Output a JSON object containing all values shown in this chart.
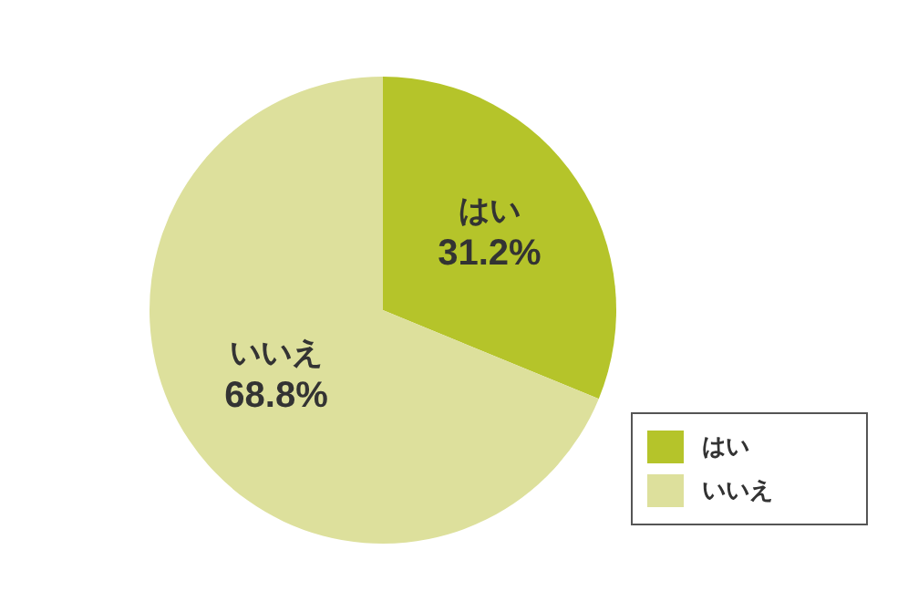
{
  "chart_data": {
    "type": "pie",
    "categories": [
      "はい",
      "いいえ"
    ],
    "values": [
      31.2,
      68.8
    ],
    "value_labels": [
      "31.2%",
      "68.8%"
    ],
    "colors": [
      "#b5c42a",
      "#dde09c"
    ],
    "legend": "bottom right"
  }
}
